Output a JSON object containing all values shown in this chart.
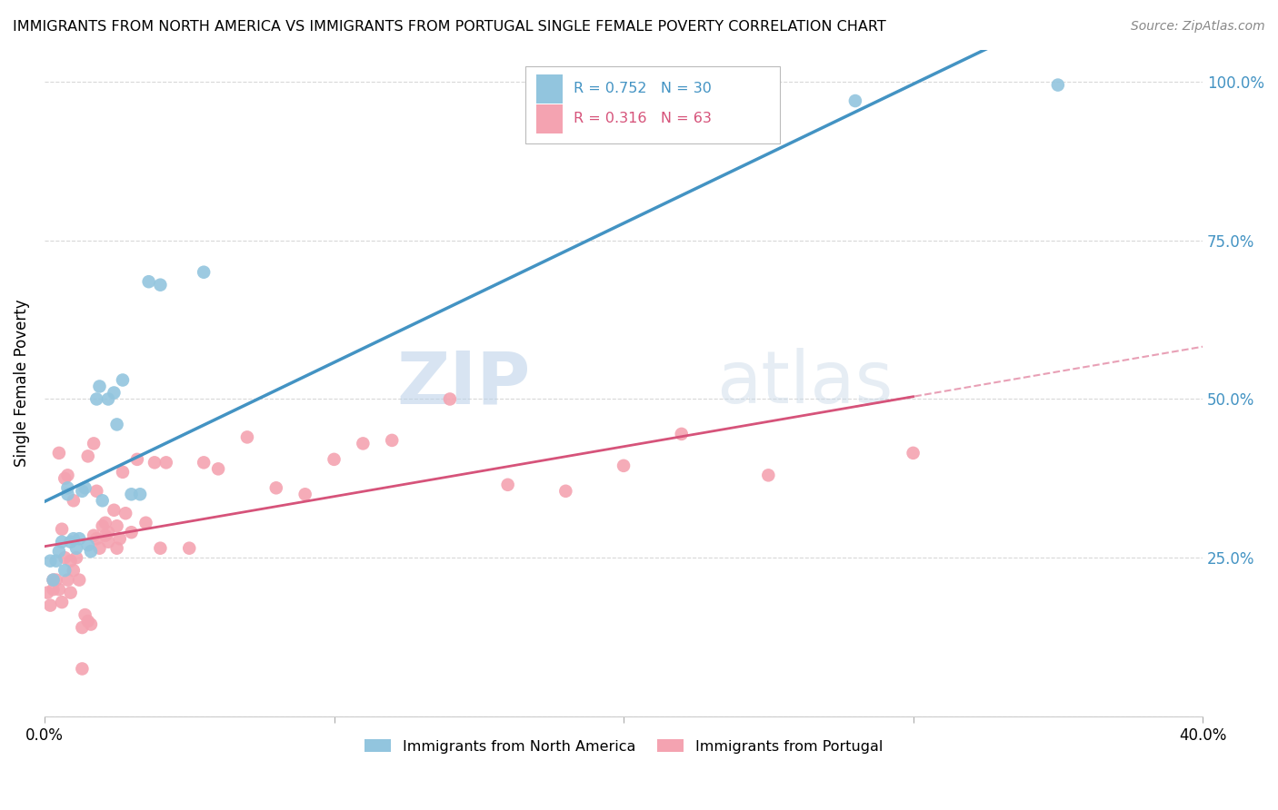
{
  "title": "IMMIGRANTS FROM NORTH AMERICA VS IMMIGRANTS FROM PORTUGAL SINGLE FEMALE POVERTY CORRELATION CHART",
  "source": "Source: ZipAtlas.com",
  "ylabel": "Single Female Poverty",
  "legend_label_blue": "Immigrants from North America",
  "legend_label_pink": "Immigrants from Portugal",
  "watermark_zip": "ZIP",
  "watermark_atlas": "atlas",
  "blue_color": "#92c5de",
  "blue_line_color": "#4393c3",
  "pink_color": "#f4a3b1",
  "pink_line_color": "#d6537a",
  "xlim": [
    0.0,
    0.4
  ],
  "ylim": [
    0.0,
    1.05
  ],
  "blue_scatter_x": [
    0.002,
    0.003,
    0.004,
    0.005,
    0.006,
    0.007,
    0.008,
    0.008,
    0.009,
    0.01,
    0.011,
    0.012,
    0.013,
    0.014,
    0.015,
    0.016,
    0.018,
    0.019,
    0.02,
    0.022,
    0.024,
    0.025,
    0.027,
    0.03,
    0.033,
    0.036,
    0.04,
    0.055,
    0.28,
    0.35
  ],
  "blue_scatter_y": [
    0.245,
    0.215,
    0.245,
    0.26,
    0.275,
    0.23,
    0.35,
    0.36,
    0.275,
    0.28,
    0.265,
    0.28,
    0.355,
    0.36,
    0.27,
    0.26,
    0.5,
    0.52,
    0.34,
    0.5,
    0.51,
    0.46,
    0.53,
    0.35,
    0.35,
    0.685,
    0.68,
    0.7,
    0.97,
    0.995
  ],
  "pink_scatter_x": [
    0.001,
    0.002,
    0.003,
    0.003,
    0.004,
    0.005,
    0.005,
    0.006,
    0.006,
    0.007,
    0.007,
    0.008,
    0.008,
    0.009,
    0.009,
    0.01,
    0.01,
    0.011,
    0.012,
    0.013,
    0.013,
    0.014,
    0.015,
    0.015,
    0.016,
    0.017,
    0.017,
    0.018,
    0.018,
    0.019,
    0.02,
    0.021,
    0.021,
    0.022,
    0.022,
    0.024,
    0.025,
    0.025,
    0.026,
    0.027,
    0.028,
    0.03,
    0.032,
    0.035,
    0.038,
    0.04,
    0.042,
    0.05,
    0.055,
    0.06,
    0.07,
    0.08,
    0.09,
    0.1,
    0.11,
    0.12,
    0.14,
    0.16,
    0.18,
    0.2,
    0.22,
    0.25,
    0.3
  ],
  "pink_scatter_y": [
    0.195,
    0.175,
    0.215,
    0.2,
    0.215,
    0.2,
    0.415,
    0.295,
    0.18,
    0.375,
    0.25,
    0.38,
    0.215,
    0.195,
    0.245,
    0.34,
    0.23,
    0.25,
    0.215,
    0.14,
    0.075,
    0.16,
    0.15,
    0.41,
    0.145,
    0.285,
    0.43,
    0.28,
    0.355,
    0.265,
    0.3,
    0.285,
    0.305,
    0.275,
    0.29,
    0.325,
    0.3,
    0.265,
    0.28,
    0.385,
    0.32,
    0.29,
    0.405,
    0.305,
    0.4,
    0.265,
    0.4,
    0.265,
    0.4,
    0.39,
    0.44,
    0.36,
    0.35,
    0.405,
    0.43,
    0.435,
    0.5,
    0.365,
    0.355,
    0.395,
    0.445,
    0.38,
    0.415
  ]
}
